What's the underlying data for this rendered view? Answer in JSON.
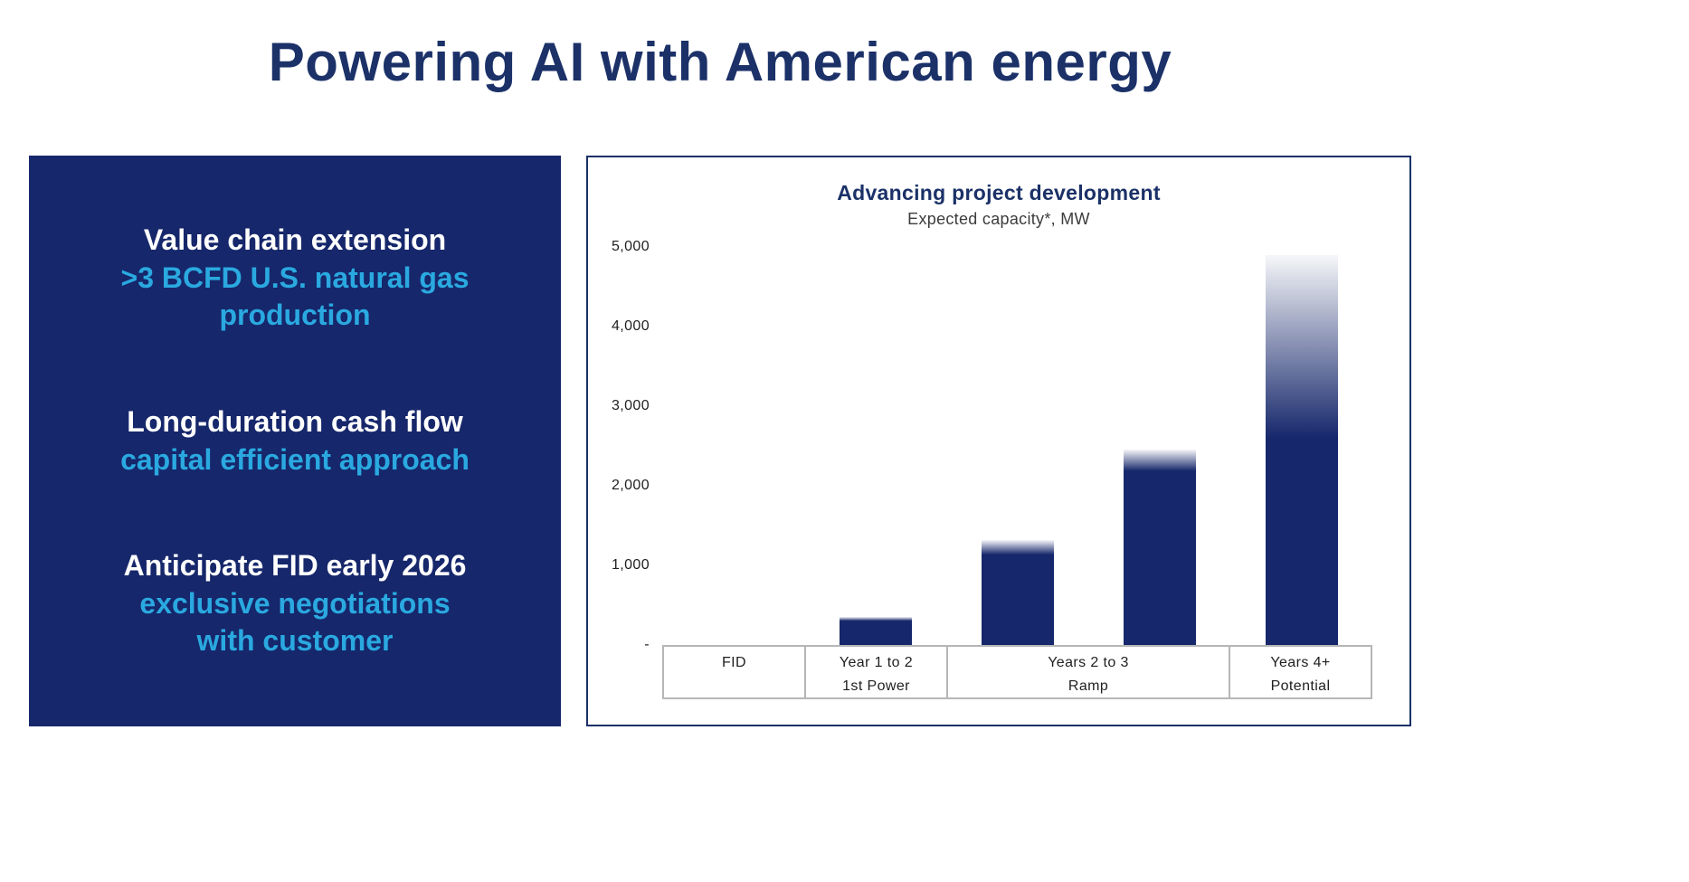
{
  "page": {
    "title": "Powering AI with American energy"
  },
  "highlights": {
    "items": [
      {
        "headline": "Value chain extension",
        "detail_lines": [
          ">3 BCFD U.S. natural gas",
          "production"
        ]
      },
      {
        "headline": "Long-duration cash flow",
        "detail_lines": [
          "capital efficient approach"
        ]
      },
      {
        "headline": "Anticipate FID early 2026",
        "detail_lines": [
          "exclusive negotiations",
          "with customer"
        ]
      }
    ]
  },
  "colors": {
    "panel_navy": "#16276b",
    "title_navy": "#1b3168",
    "accent_cyan": "#2aa9e0",
    "axis_gray": "#b6b6b6"
  },
  "chart_data": {
    "type": "bar",
    "title": "Advancing project development",
    "subtitle": "Expected capacity*, MW",
    "xlabel": "",
    "ylabel": "Expected capacity, MW",
    "ylim": [
      0,
      5000
    ],
    "grid": false,
    "legend": "none",
    "bar_color": "#16276b",
    "yticks": [
      {
        "value": 5000,
        "label": "5,000"
      },
      {
        "value": 4000,
        "label": "4,000"
      },
      {
        "value": 3000,
        "label": "3,000"
      },
      {
        "value": 2000,
        "label": "2,000"
      },
      {
        "value": 1000,
        "label": "1,000"
      },
      {
        "value": 0,
        "label": "-"
      }
    ],
    "groups": [
      {
        "label": "FID",
        "sublabel": "",
        "columns": 1,
        "bars": []
      },
      {
        "label": "Year 1 to 2",
        "sublabel": "1st Power",
        "columns": 1,
        "bars": [
          {
            "value": 350,
            "solid_to": 300
          }
        ]
      },
      {
        "label": "Years 2 to 3",
        "sublabel": "Ramp",
        "columns": 2,
        "bars": [
          {
            "value": 1320,
            "solid_to": 1130
          },
          {
            "value": 2450,
            "solid_to": 2180
          }
        ]
      },
      {
        "label": "Years 4+",
        "sublabel": "Potential",
        "columns": 1,
        "bars": [
          {
            "value": 4900,
            "solid_to": 2600
          }
        ]
      }
    ],
    "note": "Bar tops fade to white indicating estimated/uncertain capacity range above the solid value"
  }
}
